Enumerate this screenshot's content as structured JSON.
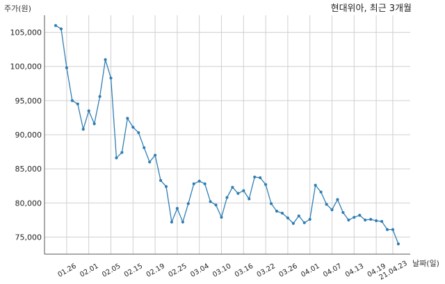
{
  "chart_data": {
    "type": "line",
    "title": "현대위아, 최근 3개월",
    "ylabel": "주가(원)",
    "xlabel": "날짜(일)",
    "ylim": [
      72500,
      107500
    ],
    "yticks": [
      75000,
      80000,
      85000,
      90000,
      95000,
      100000,
      105000
    ],
    "ytick_labels": [
      "75,000",
      "80,000",
      "85,000",
      "90,000",
      "95,000",
      "100,000",
      "105,000"
    ],
    "grid": true,
    "colors": {
      "line": "#2f7db3",
      "grid": "#cfcfcf"
    },
    "xtick_labels": [
      "01.26",
      "02.01",
      "02.05",
      "02.15",
      "02.19",
      "02.25",
      "03.04",
      "03.10",
      "03.16",
      "03.22",
      "03.26",
      "04.01",
      "04.07",
      "04.13",
      "04.19",
      "21.04.23"
    ],
    "xtick_positions": [
      2,
      6,
      10,
      14,
      18,
      22,
      26,
      30,
      34,
      38,
      42,
      46,
      50,
      54,
      58,
      61
    ],
    "series": [
      {
        "values": [
          106000,
          105500,
          99800,
          95000,
          94500,
          90800,
          93500,
          91600,
          95600,
          101000,
          98300,
          86600,
          87400,
          92400,
          91100,
          90300,
          88100,
          86000,
          87000,
          83300,
          82400,
          77200,
          79200,
          77200,
          79900,
          82800,
          83200,
          82800,
          80200,
          79700,
          77900,
          80800,
          82300,
          81400,
          81800,
          80600,
          83800,
          83700,
          82700,
          79900,
          78800,
          78500,
          77800,
          77000,
          78100,
          77100,
          77600,
          82600,
          81600,
          79800,
          79000,
          80500,
          78600,
          77500,
          77900,
          78200,
          77500,
          77600,
          77400,
          77300,
          76100,
          76100,
          74000
        ]
      }
    ]
  }
}
